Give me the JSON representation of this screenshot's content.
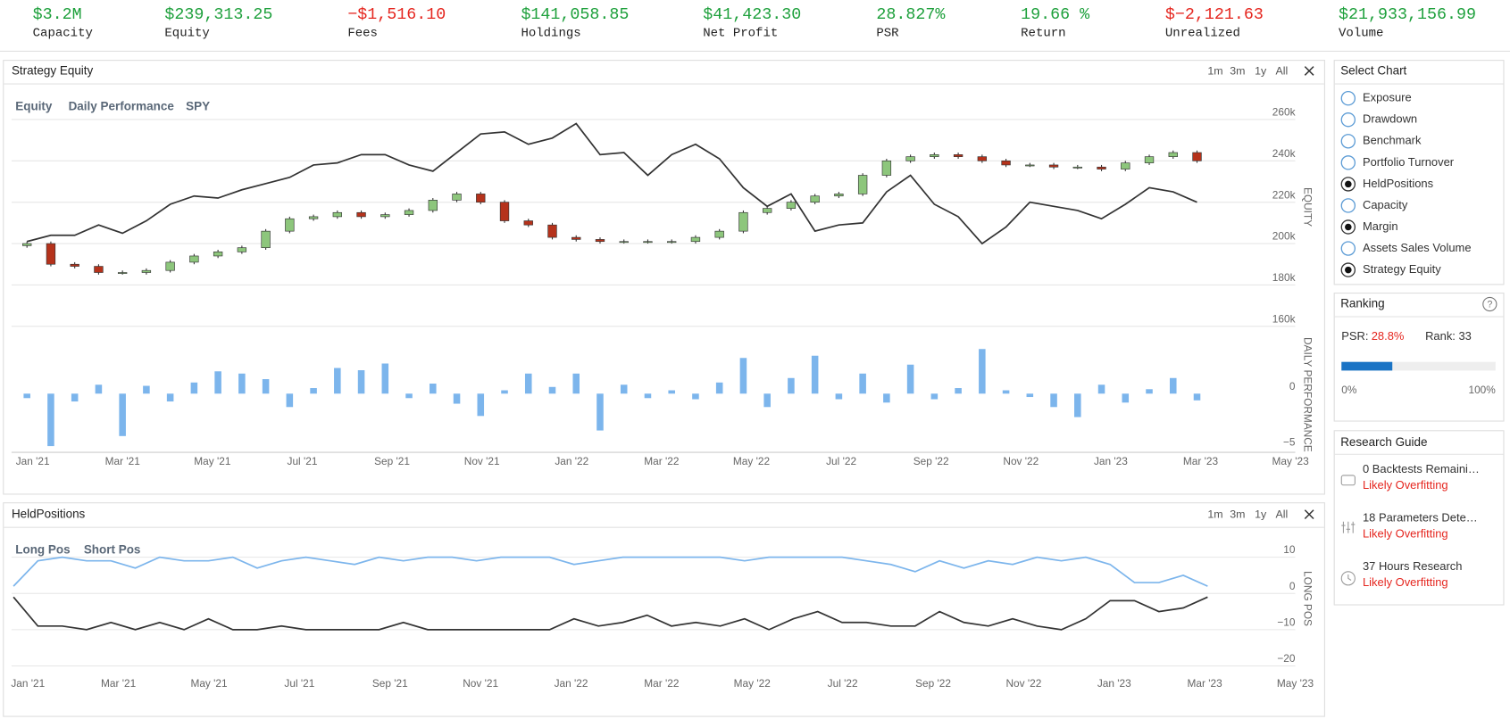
{
  "stats": [
    {
      "value": "$3.2M",
      "label": "Capacity",
      "color": "#1ea03c"
    },
    {
      "value": "$239,313.25",
      "label": "Equity",
      "color": "#1ea03c"
    },
    {
      "value": "−$1,516.10",
      "label": "Fees",
      "color": "#e5261f"
    },
    {
      "value": "$141,058.85",
      "label": "Holdings",
      "color": "#1ea03c"
    },
    {
      "value": "$41,423.30",
      "label": "Net Profit",
      "color": "#1ea03c"
    },
    {
      "value": "28.827%",
      "label": "PSR",
      "color": "#1ea03c"
    },
    {
      "value": "19.66 %",
      "label": "Return",
      "color": "#1ea03c"
    },
    {
      "value": "$−2,121.63",
      "label": "Unrealized",
      "color": "#e5261f"
    },
    {
      "value": "$21,933,156.99",
      "label": "Volume",
      "color": "#1ea03c"
    }
  ],
  "chart_data": [
    {
      "type": "combo",
      "title": "Strategy Equity",
      "ranges": [
        "1m",
        "3m",
        "1y",
        "All"
      ],
      "xticks": [
        "Jan '21",
        "Mar '21",
        "May '21",
        "Jul '21",
        "Sep '21",
        "Nov '21",
        "Jan '22",
        "Mar '22",
        "May '22",
        "Jul '22",
        "Sep '22",
        "Nov '22",
        "Jan '23",
        "Mar '23",
        "May '23"
      ],
      "ylabel": "EQUITY",
      "ylim": [
        160000,
        260000
      ],
      "yticks": [
        {
          "value": 160000,
          "label": "160k"
        },
        {
          "value": 180000,
          "label": "180k"
        },
        {
          "value": 200000,
          "label": "200k"
        },
        {
          "value": 220000,
          "label": "220k"
        },
        {
          "value": 240000,
          "label": "240k"
        },
        {
          "value": 260000,
          "label": "260k"
        }
      ],
      "y2label": "DAILY PERFORMANCE",
      "y2lim": [
        -5,
        5
      ],
      "y2ticks": [
        {
          "value": -5,
          "label": "−5"
        },
        0
      ],
      "series": [
        {
          "name": "Equity",
          "type": "candlestick",
          "up_color": "#8dc67c",
          "down_color": "#b5321b",
          "open": [
            199000,
            200000,
            190000,
            189000,
            186000,
            186000,
            187000,
            191000,
            194000,
            196000,
            198000,
            206000,
            212000,
            213000,
            215000,
            213000,
            214000,
            216000,
            221000,
            224000,
            220000,
            211000,
            209000,
            203000,
            202000,
            201000,
            201000,
            201000,
            201000,
            203000,
            206000,
            215000,
            217000,
            220000,
            223000,
            224000,
            233000,
            240000,
            242000,
            243000,
            242000,
            240000,
            238000,
            238000,
            237000,
            237000,
            236000,
            239000,
            242000,
            244000
          ],
          "high": [
            201000,
            201000,
            191000,
            190000,
            187000,
            188000,
            192000,
            195000,
            197000,
            199000,
            207000,
            213000,
            214000,
            216000,
            216000,
            215000,
            217000,
            222000,
            225000,
            225000,
            221000,
            212000,
            210000,
            204000,
            203000,
            202000,
            202000,
            202000,
            204000,
            207000,
            216000,
            218000,
            221000,
            224000,
            225000,
            234000,
            241000,
            243000,
            244000,
            244000,
            243000,
            241000,
            239000,
            239000,
            238000,
            238000,
            240000,
            243000,
            245000,
            245000
          ],
          "low": [
            198000,
            189000,
            188000,
            185000,
            185000,
            185000,
            186000,
            190000,
            193000,
            195000,
            197000,
            205000,
            211000,
            212000,
            212000,
            212000,
            213000,
            215000,
            220000,
            219000,
            210000,
            208000,
            202000,
            201000,
            200000,
            200000,
            200000,
            200000,
            200000,
            202000,
            205000,
            214000,
            216000,
            219000,
            222000,
            223000,
            232000,
            239000,
            241000,
            241000,
            239000,
            237000,
            237000,
            236000,
            236000,
            235000,
            235000,
            238000,
            241000,
            239000
          ],
          "close": [
            200000,
            190000,
            189000,
            186000,
            186000,
            187000,
            191000,
            194000,
            196000,
            198000,
            206000,
            212000,
            213000,
            215000,
            213000,
            214000,
            216000,
            221000,
            224000,
            220000,
            211000,
            209000,
            203000,
            202000,
            201000,
            201000,
            201000,
            201000,
            203000,
            206000,
            215000,
            217000,
            220000,
            223000,
            224000,
            233000,
            240000,
            242000,
            243000,
            242000,
            240000,
            238000,
            238000,
            237000,
            237000,
            236000,
            239000,
            242000,
            244000,
            240000
          ]
        },
        {
          "name": "Daily Performance",
          "type": "bar",
          "axis": "y2",
          "color": "#7cb5ec",
          "values": [
            -0.4,
            -4.7,
            -0.7,
            0.8,
            -3.8,
            0.7,
            -0.7,
            1.0,
            2.0,
            1.8,
            1.3,
            -1.2,
            0.5,
            2.3,
            2.1,
            2.7,
            -0.4,
            0.9,
            -0.9,
            -2.0,
            0.3,
            1.8,
            0.6,
            1.8,
            -3.3,
            0.8,
            -0.4,
            0.3,
            -0.5,
            1.0,
            3.2,
            -1.2,
            1.4,
            3.4,
            -0.5,
            1.8,
            -0.8,
            2.6,
            -0.5,
            0.5,
            4.0,
            0.3,
            -0.3,
            -1.2,
            -2.1,
            0.8,
            -0.8,
            0.4,
            1.4,
            -0.6
          ]
        },
        {
          "name": "SPY",
          "type": "line",
          "color": "#333333",
          "values": [
            201000,
            204000,
            204000,
            209000,
            205000,
            211000,
            219000,
            223000,
            222000,
            226000,
            229000,
            232000,
            238000,
            239000,
            243000,
            243000,
            238000,
            235000,
            244000,
            253000,
            254000,
            248000,
            251000,
            258000,
            243000,
            244000,
            233000,
            243000,
            248000,
            241000,
            227000,
            218000,
            224000,
            206000,
            209000,
            210000,
            225000,
            233000,
            219000,
            213000,
            200000,
            208000,
            220000,
            218000,
            216000,
            212000,
            219000,
            227000,
            225000,
            220000
          ]
        }
      ]
    },
    {
      "type": "line",
      "title": "HeldPositions",
      "ranges": [
        "1m",
        "3m",
        "1y",
        "All"
      ],
      "xticks": [
        "Jan '21",
        "Mar '21",
        "May '21",
        "Jul '21",
        "Sep '21",
        "Nov '21",
        "Jan '22",
        "Mar '22",
        "May '22",
        "Jul '22",
        "Sep '22",
        "Nov '22",
        "Jan '23",
        "Mar '23",
        "May '23"
      ],
      "ylabel": "LONG POS",
      "ylim": [
        -20,
        10
      ],
      "yticks": [
        {
          "value": -20,
          "label": "−20"
        },
        {
          "value": -10,
          "label": "−10"
        },
        0,
        10
      ],
      "series": [
        {
          "name": "Long Pos",
          "color": "#7cb5ec",
          "values": [
            2,
            9,
            10,
            9,
            9,
            7,
            10,
            9,
            9,
            10,
            7,
            9,
            10,
            9,
            8,
            10,
            9,
            10,
            10,
            9,
            10,
            10,
            10,
            8,
            9,
            10,
            10,
            10,
            10,
            10,
            9,
            10,
            10,
            10,
            10,
            9,
            8,
            6,
            9,
            7,
            9,
            8,
            10,
            9,
            10,
            8,
            3,
            3,
            5,
            2
          ]
        },
        {
          "name": "Short Pos",
          "color": "#333333",
          "values": [
            -1,
            -9,
            -9,
            -10,
            -8,
            -10,
            -8,
            -10,
            -7,
            -10,
            -10,
            -9,
            -10,
            -10,
            -10,
            -10,
            -8,
            -10,
            -10,
            -10,
            -10,
            -10,
            -10,
            -7,
            -9,
            -8,
            -6,
            -9,
            -8,
            -9,
            -7,
            -10,
            -7,
            -5,
            -8,
            -8,
            -9,
            -9,
            -5,
            -8,
            -9,
            -7,
            -9,
            -10,
            -7,
            -2,
            -2,
            -5,
            -4,
            -1
          ]
        }
      ]
    }
  ],
  "select_chart": {
    "title": "Select Chart",
    "items": [
      {
        "label": "Exposure",
        "selected": false
      },
      {
        "label": "Drawdown",
        "selected": false
      },
      {
        "label": "Benchmark",
        "selected": false
      },
      {
        "label": "Portfolio Turnover",
        "selected": false
      },
      {
        "label": "HeldPositions",
        "selected": true
      },
      {
        "label": "Capacity",
        "selected": false
      },
      {
        "label": "Margin",
        "selected": true
      },
      {
        "label": "Assets Sales Volume",
        "selected": false
      },
      {
        "label": "Strategy Equity",
        "selected": true
      }
    ]
  },
  "ranking": {
    "title": "Ranking",
    "psr_label": "PSR:",
    "psr": "28.8%",
    "rank": "Rank: 33",
    "progress": 33,
    "scale": [
      {
        "value": 0,
        "label": "0%"
      },
      {
        "value": 100,
        "label": "100%"
      }
    ]
  },
  "research_guide": {
    "title": "Research Guide",
    "items": [
      {
        "text": "0 Backtests Remaini…",
        "status": "Likely Overfitting"
      },
      {
        "text": "18 Parameters Dete…",
        "status": "Likely Overfitting"
      },
      {
        "text": "37 Hours Research",
        "status": "Likely Overfitting"
      }
    ]
  }
}
